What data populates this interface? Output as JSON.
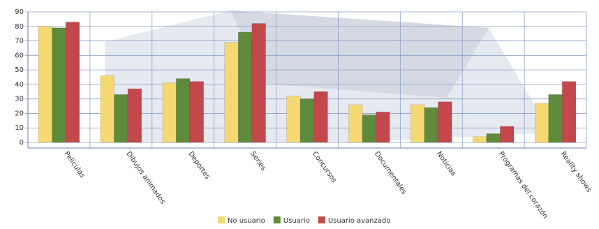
{
  "chart_data": {
    "type": "bar",
    "categories": [
      "Películas",
      "Dibujos animados",
      "Deportes",
      "Series",
      "Concursos",
      "Documentales",
      "Noticias",
      "Programas del corazón",
      "Reality shows"
    ],
    "series": [
      {
        "name": "No usuario",
        "color": "#f6d873",
        "values": [
          80,
          46,
          41,
          69,
          32,
          26,
          26,
          4,
          27
        ]
      },
      {
        "name": "Usuario",
        "color": "#5e8c3c",
        "values": [
          79,
          33,
          44,
          76,
          30,
          19,
          24,
          6,
          33
        ]
      },
      {
        "name": "Usuario avanzado",
        "color": "#c2484b",
        "values": [
          83,
          37,
          42,
          82,
          35,
          21,
          28,
          11,
          42
        ]
      }
    ],
    "ylim": [
      0,
      90
    ],
    "yticks": [
      0,
      10,
      20,
      30,
      40,
      50,
      60,
      70,
      80,
      90
    ],
    "grid": true,
    "legend": "bottom"
  }
}
